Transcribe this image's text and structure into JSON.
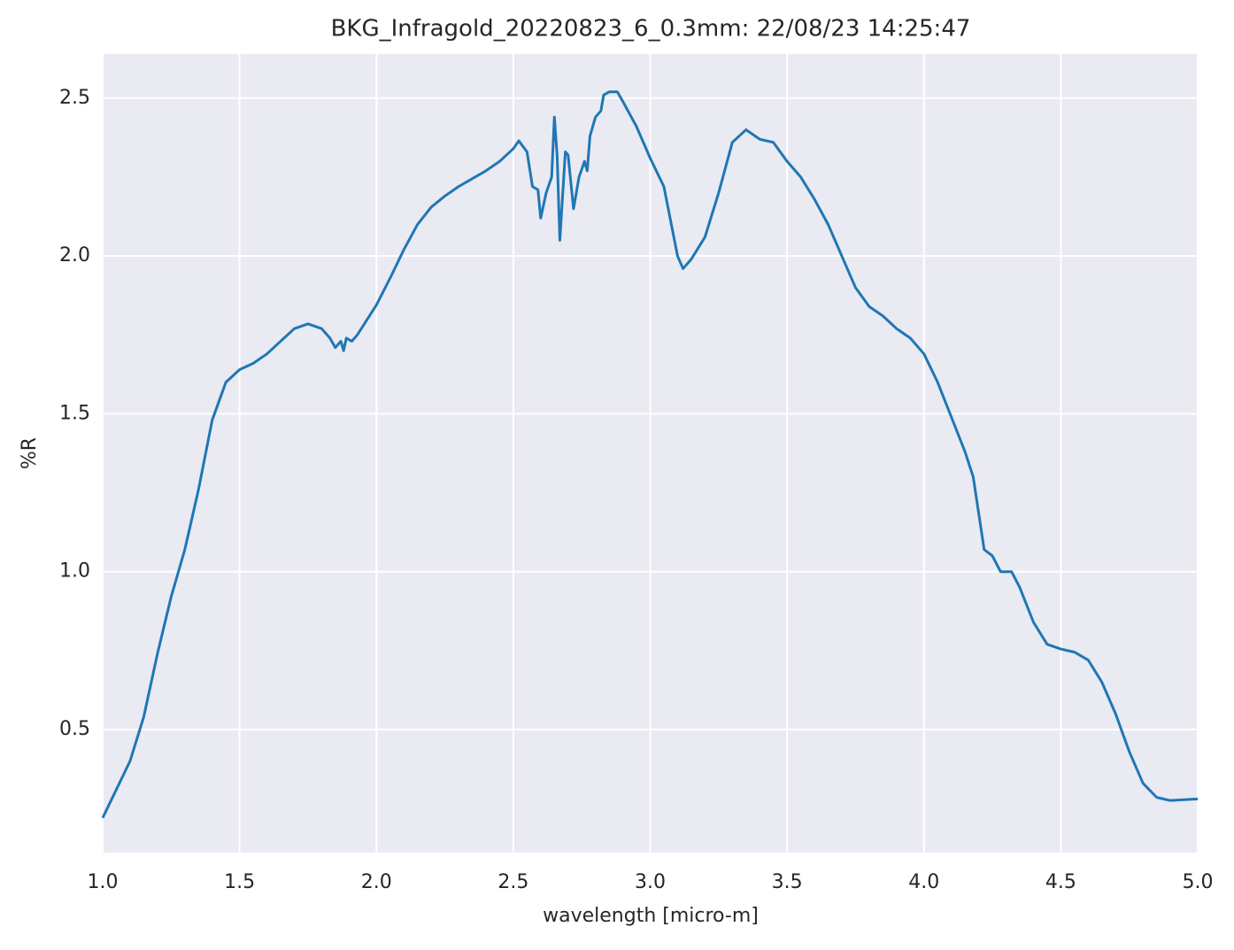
{
  "chart_data": {
    "type": "line",
    "title": "BKG_Infragold_20220823_6_0.3mm:  22/08/23 14:25:47",
    "x_label": "wavelength [micro-m]",
    "y_label": "%R",
    "xlim": [
      1.0,
      5.0
    ],
    "ylim": [
      0.11,
      2.64
    ],
    "xticks": [
      {
        "value": 1.0,
        "label": "1.0"
      },
      1.5,
      {
        "value": 2.0,
        "label": "2.0"
      },
      2.5,
      {
        "value": 3.0,
        "label": "3.0"
      },
      3.5,
      {
        "value": 4.0,
        "label": "4.0"
      },
      4.5,
      {
        "value": 5.0,
        "label": "5.0"
      }
    ],
    "yticks": [
      0.5,
      {
        "value": 1.0,
        "label": "1.0"
      },
      1.5,
      {
        "value": 2.0,
        "label": "2.0"
      },
      2.5
    ],
    "grid": true,
    "x": [
      1.0,
      1.05,
      1.1,
      1.15,
      1.2,
      1.25,
      1.3,
      1.35,
      1.4,
      1.45,
      1.5,
      1.55,
      1.6,
      1.65,
      1.7,
      1.75,
      1.8,
      1.83,
      1.85,
      1.87,
      1.88,
      1.89,
      1.91,
      1.93,
      2.0,
      2.05,
      2.1,
      2.15,
      2.2,
      2.25,
      2.3,
      2.35,
      2.4,
      2.45,
      2.5,
      2.52,
      2.55,
      2.57,
      2.59,
      2.6,
      2.62,
      2.64,
      2.65,
      2.66,
      2.67,
      2.69,
      2.7,
      2.72,
      2.74,
      2.76,
      2.77,
      2.78,
      2.8,
      2.82,
      2.83,
      2.85,
      2.88,
      2.9,
      2.95,
      3.0,
      3.05,
      3.1,
      3.12,
      3.15,
      3.2,
      3.25,
      3.3,
      3.35,
      3.4,
      3.45,
      3.5,
      3.55,
      3.6,
      3.65,
      3.7,
      3.75,
      3.8,
      3.85,
      3.9,
      3.95,
      4.0,
      4.05,
      4.1,
      4.15,
      4.18,
      4.22,
      4.25,
      4.28,
      4.32,
      4.35,
      4.4,
      4.45,
      4.5,
      4.55,
      4.6,
      4.65,
      4.7,
      4.75,
      4.8,
      4.85,
      4.9,
      5.0
    ],
    "series": [
      {
        "color": "#1f77b4",
        "values": [
          0.22,
          0.31,
          0.4,
          0.54,
          0.74,
          0.92,
          1.07,
          1.26,
          1.48,
          1.6,
          1.64,
          1.66,
          1.69,
          1.73,
          1.77,
          1.785,
          1.77,
          1.74,
          1.71,
          1.73,
          1.7,
          1.74,
          1.73,
          1.75,
          1.845,
          1.93,
          2.02,
          2.1,
          2.155,
          2.19,
          2.22,
          2.245,
          2.27,
          2.3,
          2.34,
          2.365,
          2.33,
          2.22,
          2.21,
          2.12,
          2.2,
          2.25,
          2.44,
          2.32,
          2.05,
          2.33,
          2.32,
          2.15,
          2.25,
          2.3,
          2.27,
          2.38,
          2.44,
          2.46,
          2.51,
          2.52,
          2.52,
          2.49,
          2.41,
          2.31,
          2.22,
          2.0,
          1.96,
          1.99,
          2.06,
          2.2,
          2.36,
          2.4,
          2.37,
          2.36,
          2.3,
          2.25,
          2.18,
          2.1,
          2.0,
          1.9,
          1.84,
          1.81,
          1.77,
          1.74,
          1.69,
          1.6,
          1.49,
          1.38,
          1.3,
          1.07,
          1.05,
          1.0,
          1.0,
          0.95,
          0.84,
          0.77,
          0.755,
          0.745,
          0.72,
          0.65,
          0.55,
          0.43,
          0.33,
          0.285,
          0.275,
          0.28
        ]
      }
    ]
  }
}
